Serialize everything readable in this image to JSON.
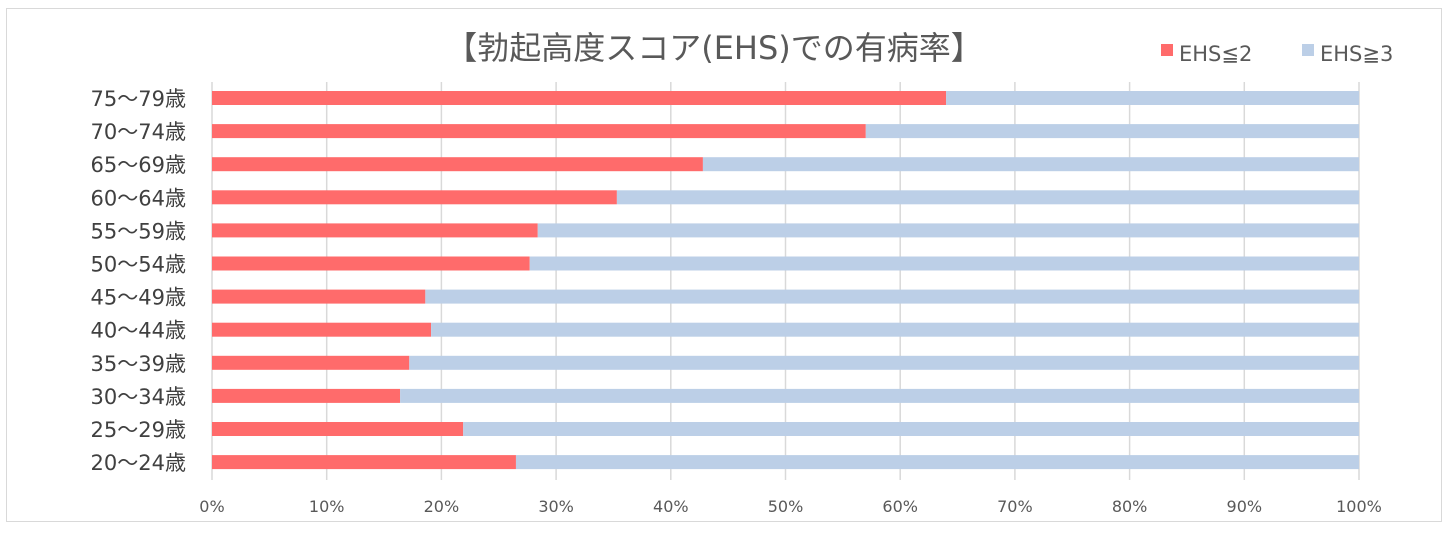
{
  "chart_data": {
    "type": "bar",
    "orientation": "horizontal",
    "stacked": "percent",
    "title": "【勃起高度スコア(EHS)での有病率】",
    "categories": [
      "75～79歳",
      "70～74歳",
      "65～69歳",
      "60～64歳",
      "55～59歳",
      "50～54歳",
      "45～49歳",
      "40～44歳",
      "35～39歳",
      "30～34歳",
      "25～29歳",
      "20～24歳"
    ],
    "series": [
      {
        "name": "EHS≦2",
        "color": "#ff6b6b",
        "values": [
          64,
          57,
          42.8,
          35.3,
          28.4,
          27.7,
          18.6,
          19.1,
          17.2,
          16.4,
          21.9,
          26.5
        ]
      },
      {
        "name": "EHS≧3",
        "color": "#bccfe7",
        "values": [
          36,
          43,
          57.2,
          64.7,
          71.6,
          72.3,
          81.4,
          80.9,
          82.8,
          83.6,
          78.1,
          73.5
        ]
      }
    ],
    "xlim": [
      0,
      100
    ],
    "x_ticks": [
      "0%",
      "10%",
      "20%",
      "30%",
      "40%",
      "50%",
      "60%",
      "70%",
      "80%",
      "90%",
      "100%"
    ],
    "grid": "vertical",
    "legend_position": "top-right"
  }
}
